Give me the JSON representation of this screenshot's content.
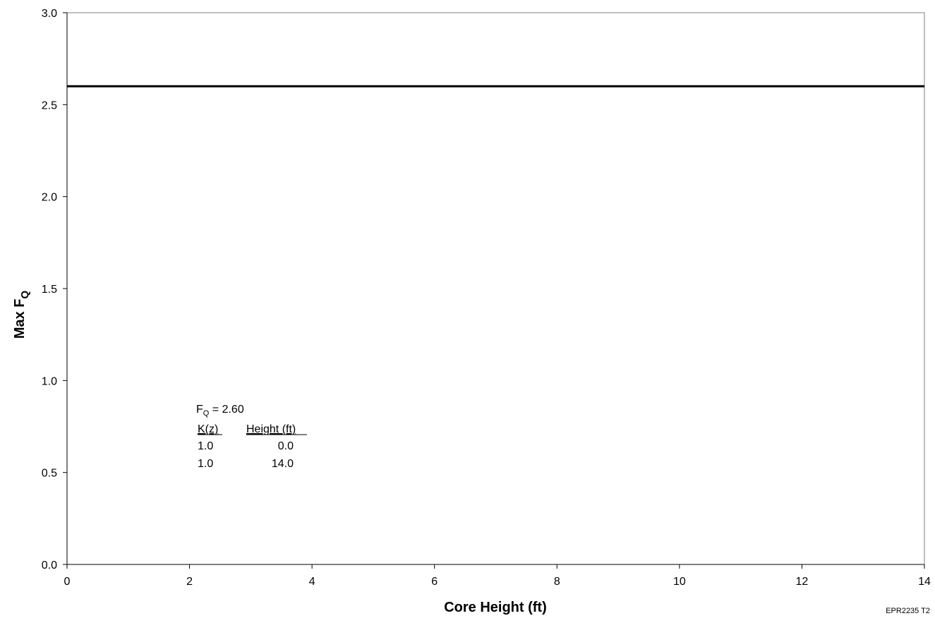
{
  "chart_data": {
    "type": "line",
    "title": "",
    "xlabel": "Core Height (ft)",
    "ylabel": "Max F",
    "ylabel_subscript": "Q",
    "xlim": [
      0,
      14
    ],
    "ylim": [
      0,
      3.0
    ],
    "x_ticks": [
      0,
      2,
      4,
      6,
      8,
      10,
      12,
      14
    ],
    "x_tick_labels": [
      "0",
      "2",
      "4",
      "6",
      "8",
      "10",
      "12",
      "14"
    ],
    "y_ticks": [
      0,
      0.5,
      1.0,
      1.5,
      2.0,
      2.5,
      3.0
    ],
    "y_tick_labels": [
      "0.0",
      "0.5",
      "1.0",
      "1.5",
      "2.0",
      "2.5",
      "3.0"
    ],
    "grid": false,
    "legend": "none",
    "series": [
      {
        "x": [
          0.0,
          14.0
        ],
        "y": [
          2.6,
          2.6
        ],
        "color": "#000000"
      }
    ],
    "annotation": {
      "line1_main": "F",
      "line1_sub": "Q",
      "line1_rest": " = 2.60",
      "header_k": "K(z)",
      "header_height": "Height (ft)",
      "rows": [
        {
          "k": "1.0",
          "height": "0.0"
        },
        {
          "k": "1.0",
          "height": "14.0"
        }
      ]
    },
    "figure_id": "EPR2235 T2"
  }
}
